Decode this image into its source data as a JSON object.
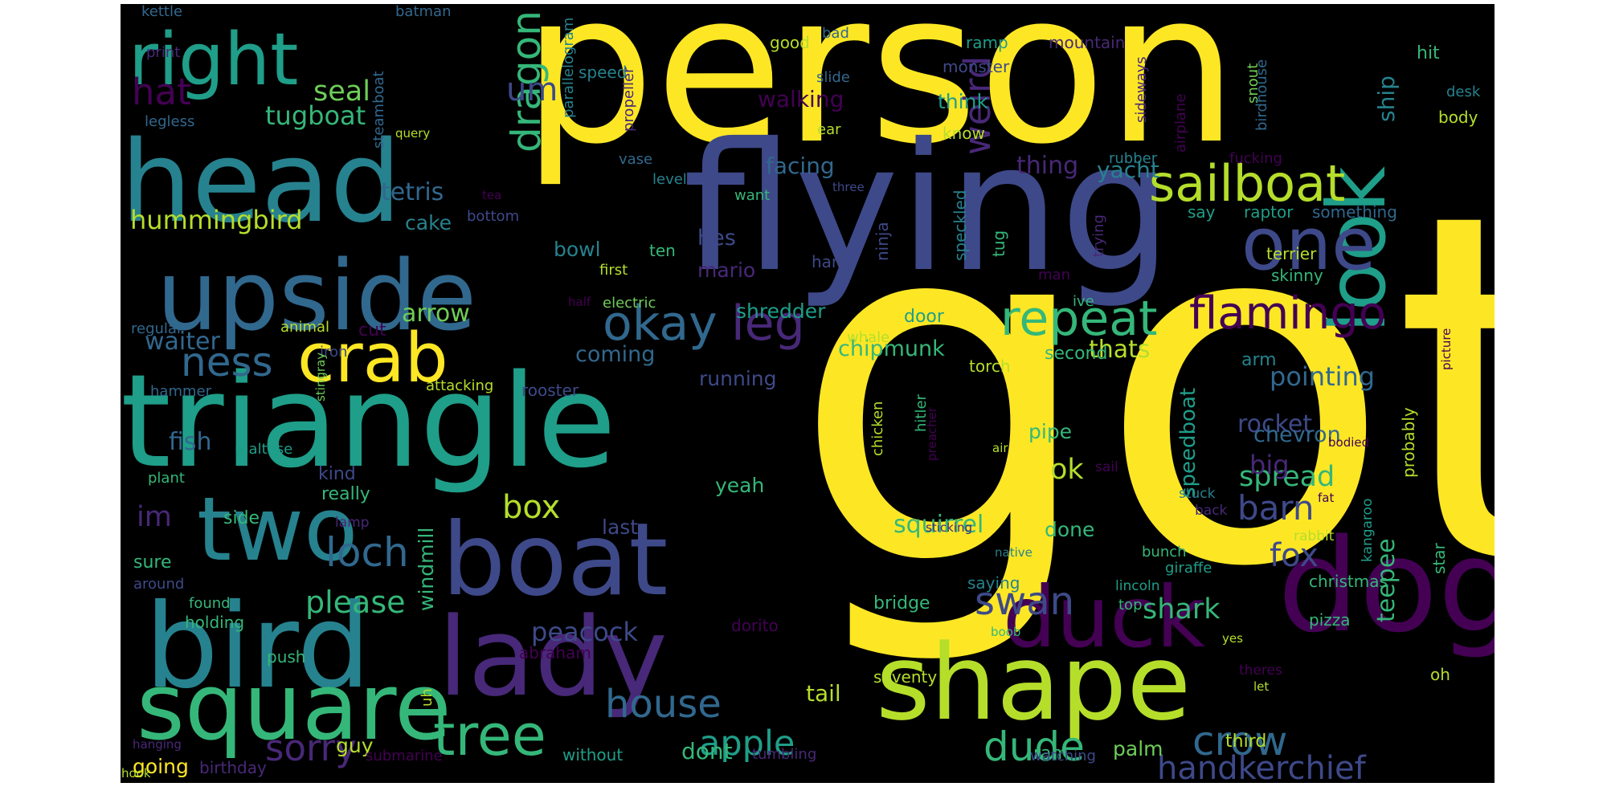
{
  "palette": [
    "#440154",
    "#482878",
    "#3e4989",
    "#31688e",
    "#26828e",
    "#1f9e89",
    "#35b779",
    "#6ece58",
    "#b5de2b",
    "#fde725"
  ],
  "words": [
    "got",
    "person",
    "flying",
    "triangle",
    "head",
    "upside",
    "bird",
    "boat",
    "dog",
    "lady",
    "shape",
    "square",
    "two",
    "right",
    "crab",
    "duck",
    "look",
    "sailboat",
    "one",
    "repeat",
    "okay",
    "leg",
    "flamingo",
    "tree",
    "house",
    "sorry",
    "ness",
    "loch",
    "crow",
    "dude",
    "handkerchief",
    "apple",
    "swan",
    "dragon",
    "weird",
    "barn",
    "box",
    "fox",
    "rocket",
    "pointing",
    "shark",
    "spread",
    "squirrel",
    "hat",
    "um",
    "seal",
    "tugboat",
    "hummingbird",
    "tetris",
    "cake",
    "arrow",
    "waiter",
    "im",
    "fish",
    "please",
    "peacock",
    "bowl",
    "hes",
    "mario",
    "coming",
    "running",
    "shredder",
    "chipmunk",
    "walking",
    "facing",
    "thing",
    "yacht",
    "ship",
    "speedboat",
    "teepee",
    "thats",
    "ok",
    "big",
    "chevron",
    "pipe",
    "done",
    "say",
    "raptor",
    "something",
    "terrier",
    "skinny",
    "second",
    "arm",
    "torch",
    "think",
    "know",
    "ramp",
    "monster",
    "mountain",
    "good",
    "hit",
    "desk",
    "body",
    "tail",
    "palm",
    "ram",
    "third",
    "guy",
    "going",
    "birthday",
    "dont",
    "yeah",
    "last",
    "kind",
    "really",
    "sure",
    "around",
    "lamp",
    "bunch",
    "sail",
    "back",
    "stuck",
    "rabbit",
    "star",
    "kangaroo",
    "probably",
    "fat",
    "bodied",
    "picture",
    "christmas",
    "pizza",
    "oh",
    "let",
    "yes",
    "theres",
    "seventy",
    "boob",
    "lincoln",
    "top",
    "bridge",
    "saying",
    "native",
    "giraffe",
    "whale",
    "door",
    "rooster",
    "attacking",
    "cut",
    "iron",
    "animal",
    "regular",
    "half",
    "electric",
    "first",
    "ten",
    "hang",
    "ninja",
    "speckled",
    "tug",
    "man",
    "trying",
    "ive",
    "windmill",
    "dorito",
    "abraham",
    "push",
    "holding",
    "found",
    "submarine",
    "without",
    "tumbling",
    "watching",
    "hook",
    "hanging",
    "uh",
    "hammer",
    "plant",
    "stingray",
    "chicken",
    "preacher",
    "air",
    "hitler",
    "sticking",
    "side",
    "maltese",
    "print",
    "legless",
    "speed",
    "propeller",
    "parallelogram",
    "steamboat",
    "query",
    "vase",
    "level",
    "tea",
    "bottom",
    "want",
    "three",
    "ear",
    "slide",
    "sideways",
    "airplane",
    "snout",
    "birdhouse",
    "rubber",
    "fucking",
    "kettle",
    "batman",
    "bad"
  ]
}
